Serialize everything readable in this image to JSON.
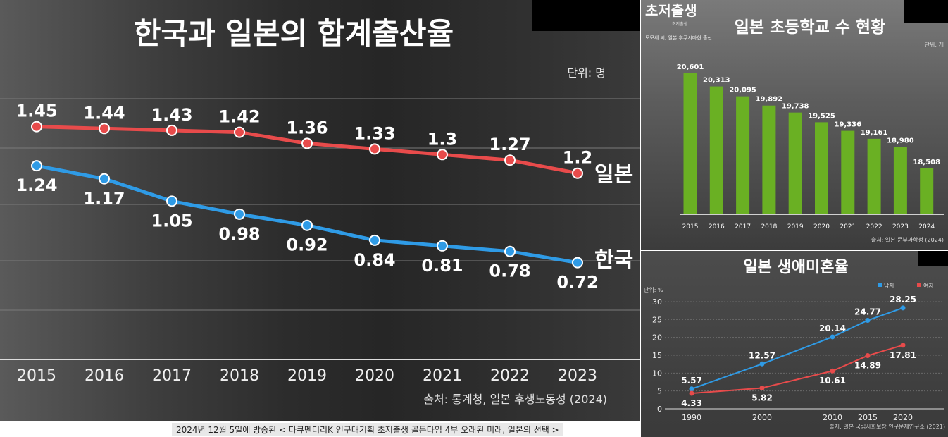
{
  "caption": "2024년 12월 5일에 방송된 < 다큐멘터리K 인구대기획 초저출생 골든타임 4부 오래된 미래, 일본의 선택 >",
  "chart_data": [
    {
      "type": "line",
      "title": "한국과 일본의 합계출산율",
      "unit": "단위: 명",
      "source": "출처: 통계청, 일본 후생노동성 (2024)",
      "x": [
        "2015",
        "2016",
        "2017",
        "2018",
        "2019",
        "2020",
        "2021",
        "2022",
        "2023"
      ],
      "ylim": [
        0.2,
        1.6
      ],
      "series": [
        {
          "name": "일본",
          "color": "#e84b4b",
          "values": [
            1.45,
            1.44,
            1.43,
            1.42,
            1.36,
            1.33,
            1.3,
            1.27,
            1.2
          ],
          "labels": [
            "1.45",
            "1.44",
            "1.43",
            "1.42",
            "1.36",
            "1.33",
            "1.3",
            "1.27",
            "1.2"
          ]
        },
        {
          "name": "한국",
          "color": "#2f9be6",
          "values": [
            1.24,
            1.17,
            1.05,
            0.98,
            0.92,
            0.84,
            0.81,
            0.78,
            0.72
          ],
          "labels": [
            "1.24",
            "1.17",
            "1.05",
            "0.98",
            "0.92",
            "0.84",
            "0.81",
            "0.78",
            "0.72"
          ]
        }
      ]
    },
    {
      "type": "bar",
      "title": "일본 초등학교 수 현황",
      "logo": "초저출생",
      "logo_sub": "초저출생",
      "subtitle": "모모세 씨, 일본 후쿠시마현 출신",
      "unit": "단위: 개",
      "source": "출처: 일본 문부과학성 (2024)",
      "categories": [
        "2015",
        "2016",
        "2017",
        "2018",
        "2019",
        "2020",
        "2021",
        "2022",
        "2023",
        "2024"
      ],
      "values": [
        20601,
        20313,
        20095,
        19892,
        19738,
        19525,
        19336,
        19161,
        18980,
        18508
      ],
      "labels": [
        "20,601",
        "20,313",
        "20,095",
        "19,892",
        "19,738",
        "19,525",
        "19,336",
        "19,161",
        "18,980",
        "18,508"
      ],
      "ylim": [
        17500,
        21000
      ],
      "color": "#6ab023"
    },
    {
      "type": "line",
      "title": "일본 생애미혼율",
      "unit": "단위: %",
      "source": "출처: 일본 국립사회보장 인구문제연구소 (2021)",
      "x": [
        "1990",
        "2000",
        "2010",
        "2015",
        "2020"
      ],
      "x_values": [
        1990,
        2000,
        2010,
        2015,
        2020
      ],
      "yticks": [
        "30",
        "25",
        "20",
        "15",
        "10",
        "5",
        "0"
      ],
      "ylim": [
        0,
        30
      ],
      "series": [
        {
          "name": "남자",
          "color": "#2f9be6",
          "values": [
            5.57,
            12.57,
            20.14,
            24.77,
            28.25
          ],
          "labels": [
            "5.57",
            "12.57",
            "20.14",
            "24.77",
            "28.25"
          ]
        },
        {
          "name": "여자",
          "color": "#e84b4b",
          "values": [
            4.33,
            5.82,
            10.61,
            14.89,
            17.81
          ],
          "labels": [
            "4.33",
            "5.82",
            "10.61",
            "14.89",
            "17.81"
          ]
        }
      ]
    }
  ]
}
